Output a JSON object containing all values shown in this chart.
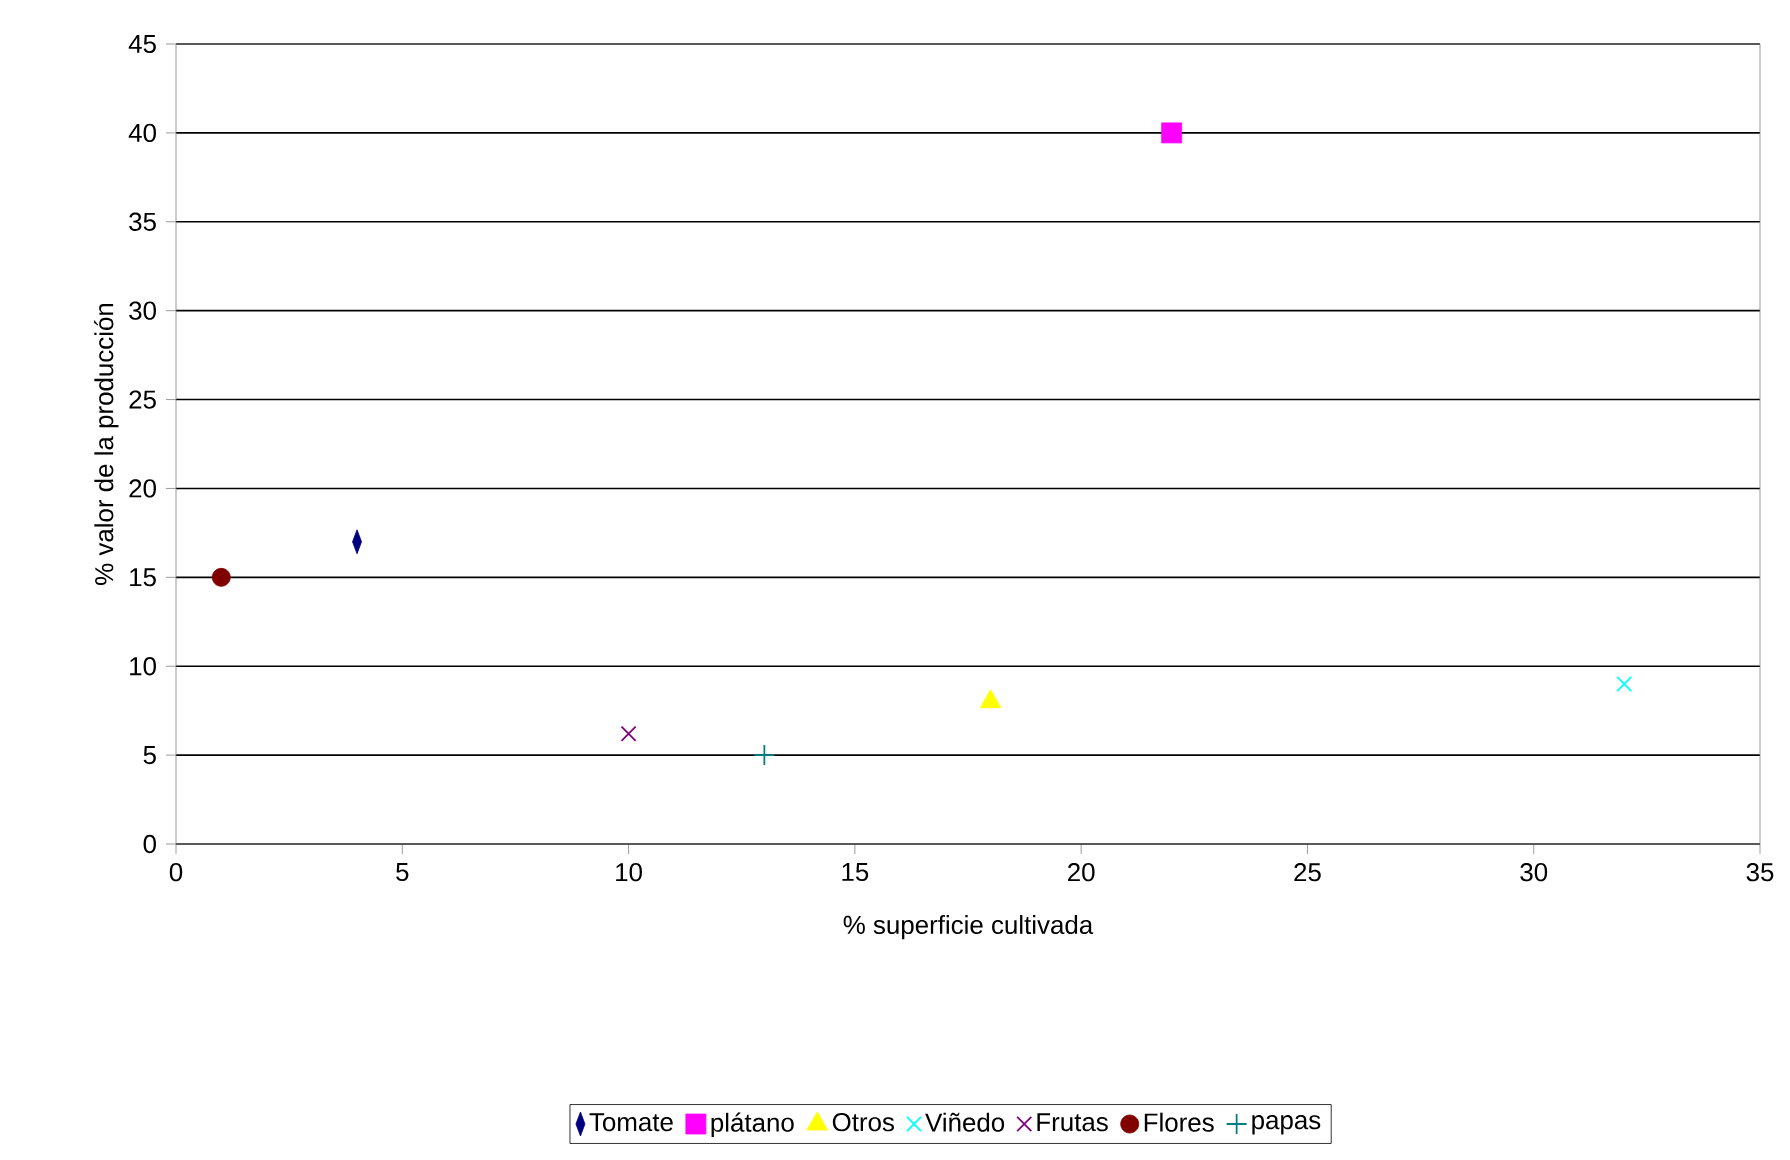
{
  "chart_data": {
    "type": "scatter",
    "xlabel": "% superficie cultivada",
    "ylabel": "% valor de la producción",
    "xlim": [
      0,
      35
    ],
    "xticks": [
      0,
      5,
      10,
      15,
      20,
      25,
      30,
      35
    ],
    "ylim": [
      0,
      45
    ],
    "yticks": [
      0,
      5,
      10,
      15,
      20,
      25,
      30,
      35,
      40,
      45
    ],
    "grid": "y",
    "legend": "bottom",
    "series": [
      {
        "name": "Tomate",
        "color": "#000080",
        "marker": "diamond",
        "x": [
          4
        ],
        "values": [
          17
        ]
      },
      {
        "name": "plátano",
        "color": "#ff00ff",
        "marker": "square",
        "x": [
          22
        ],
        "values": [
          40
        ]
      },
      {
        "name": "Otros",
        "color": "#ffff00",
        "marker": "triangle",
        "x": [
          18
        ],
        "values": [
          8
        ]
      },
      {
        "name": "Viñedo",
        "color": "#00ffff",
        "marker": "cross",
        "x": [
          32
        ],
        "values": [
          9
        ]
      },
      {
        "name": "Frutas",
        "color": "#800080",
        "marker": "cross",
        "x": [
          10
        ],
        "values": [
          6.2
        ]
      },
      {
        "name": "Flores",
        "color": "#800000",
        "marker": "circle",
        "x": [
          1
        ],
        "values": [
          15
        ]
      },
      {
        "name": "papas",
        "color": "#008080",
        "marker": "plus",
        "x": [
          13
        ],
        "values": [
          5
        ]
      }
    ]
  }
}
